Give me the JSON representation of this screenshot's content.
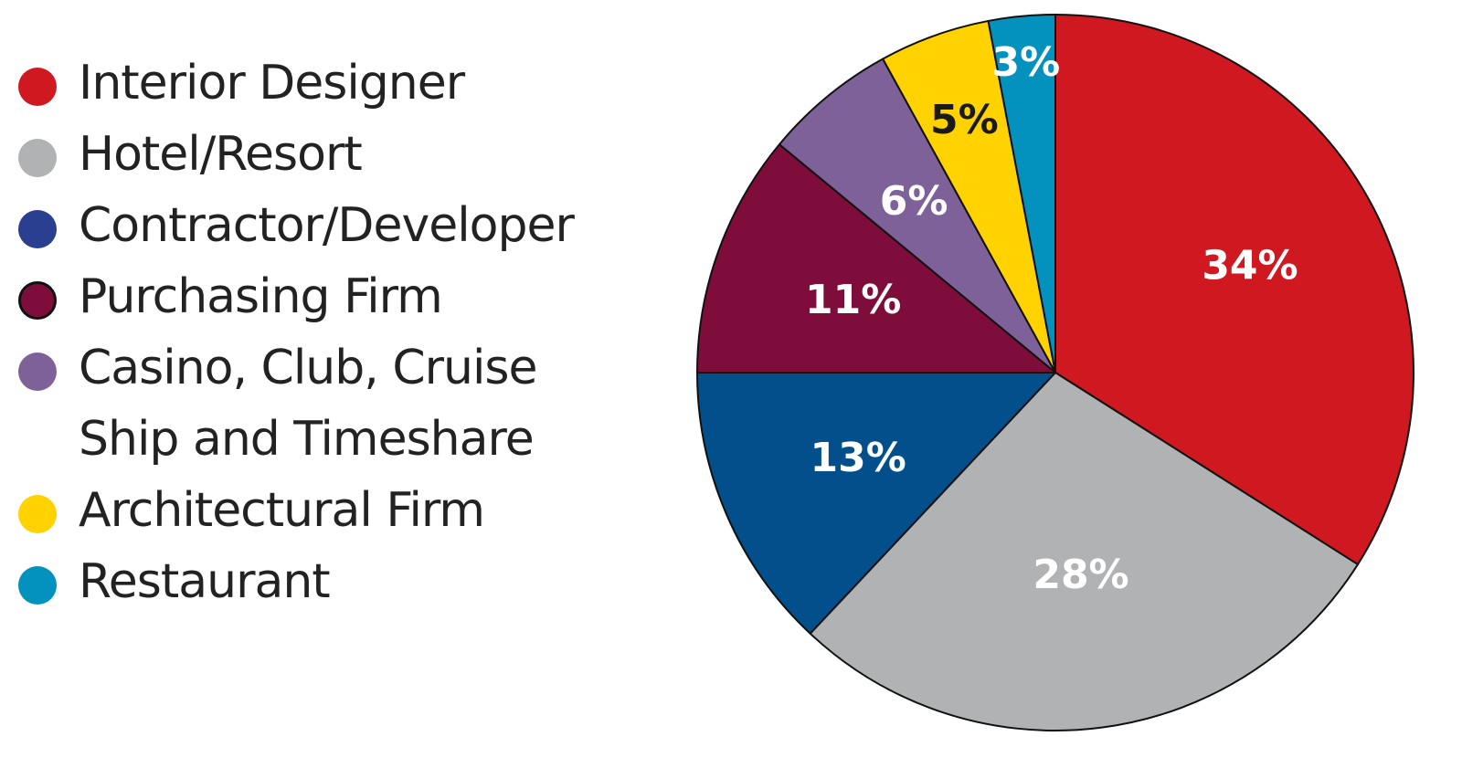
{
  "chart_data": {
    "type": "pie",
    "title": "",
    "start_angle_deg": 0,
    "direction": "clockwise",
    "slices": [
      {
        "label": "Interior Designer",
        "value": 34,
        "value_label": "34%",
        "color": "#cf1820",
        "text_color": "#ffffff"
      },
      {
        "label": "Hotel/Resort",
        "value": 28,
        "value_label": "28%",
        "color": "#b1b2b4",
        "text_color": "#ffffff"
      },
      {
        "label": "Contractor/Developer",
        "value": 13,
        "value_label": "13%",
        "color": "#034f8c",
        "text_color": "#ffffff"
      },
      {
        "label": "Purchasing Firm",
        "value": 11,
        "value_label": "11%",
        "color": "#7f0d3c",
        "text_color": "#ffffff"
      },
      {
        "label": "Casino, Club, Cruise\nShip and Timeshare",
        "value": 6,
        "value_label": "6%",
        "color": "#7d6198",
        "text_color": "#ffffff"
      },
      {
        "label": "Architectural Firm",
        "value": 5,
        "value_label": "5%",
        "color": "#ffd200",
        "text_color": "#1a1a1a"
      },
      {
        "label": "Restaurant",
        "value": 3,
        "value_label": "3%",
        "color": "#0292bd",
        "text_color": "#ffffff"
      }
    ],
    "legend": {
      "placement": "left",
      "items": [
        {
          "label": "Interior Designer",
          "color": "#cf1820"
        },
        {
          "label": "Hotel/Resort",
          "color": "#b1b2b4"
        },
        {
          "label": "Contractor/Developer",
          "color": "#2a3f8f"
        },
        {
          "label": "Purchasing Firm",
          "color": "#7f0d3c",
          "outlined": true
        },
        {
          "label": "Casino, Club, Cruise\nShip and Timeshare",
          "color": "#7d6198"
        },
        {
          "label": "Architectural Firm",
          "color": "#ffd200"
        },
        {
          "label": "Restaurant",
          "color": "#0292bd"
        }
      ]
    }
  }
}
